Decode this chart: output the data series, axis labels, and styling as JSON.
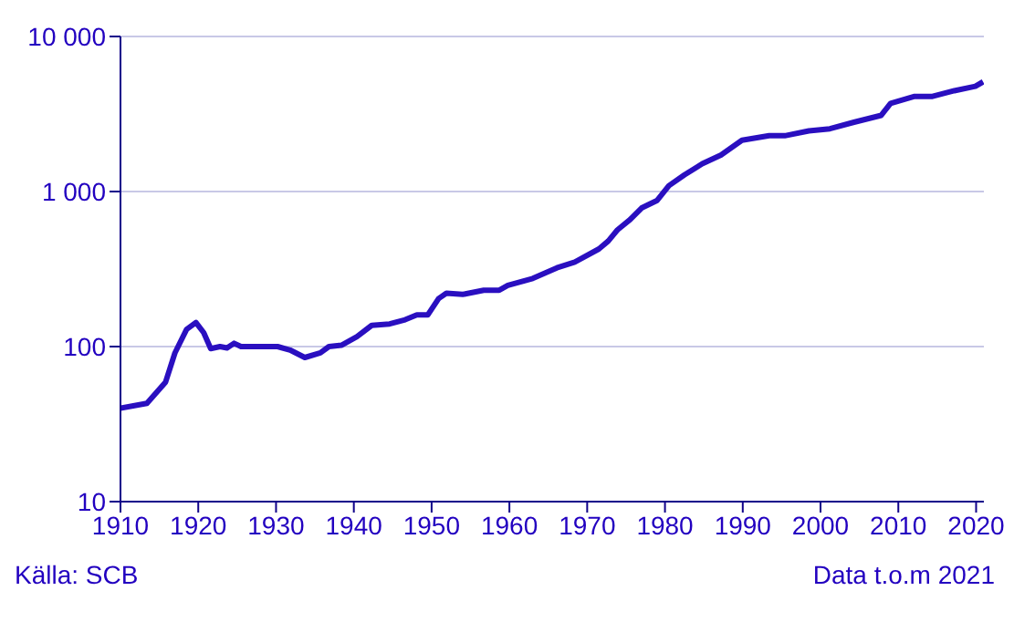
{
  "chart_data": {
    "type": "line",
    "log": "y",
    "grid": "y",
    "marker": "none",
    "line_style": "solid",
    "x": [
      1910,
      1913.4,
      1915.8,
      1917,
      1918.5,
      1919.7,
      1920.7,
      1921.6,
      1922.8,
      1923.7,
      1924.6,
      1925.5,
      1930.2,
      1931.8,
      1933.7,
      1935.7,
      1936.8,
      1938.4,
      1940.4,
      1942.3,
      1944.6,
      1946.6,
      1948.1,
      1949.5,
      1950.9,
      1951.9,
      1954,
      1956.7,
      1958.7,
      1959.8,
      1963,
      1966.1,
      1968.4,
      1971.5,
      1972.7,
      1973.9,
      1975.5,
      1977,
      1979,
      1980.5,
      1982.5,
      1984.8,
      1987.2,
      1989.9,
      1993.4,
      1995.4,
      1998.5,
      2001.2,
      2004.3,
      2007.8,
      2009,
      2012.1,
      2014.4,
      2017.2,
      2019.9,
      2020.9
    ],
    "series": [
      {
        "color": "#2a0fc0",
        "values": [
          40,
          43,
          59,
          91,
          129,
          143,
          123,
          97,
          100,
          98,
          105,
          100,
          100,
          95,
          85,
          91,
          100,
          102,
          116,
          137,
          140,
          149,
          160,
          160,
          204,
          221,
          217,
          231,
          231,
          248,
          275,
          322,
          351,
          426,
          479,
          566,
          658,
          783,
          877,
          1090,
          1280,
          1510,
          1720,
          2140,
          2290,
          2290,
          2460,
          2540,
          2800,
          3100,
          3700,
          4110,
          4110,
          4470,
          4770,
          5100
        ]
      }
    ],
    "xlim": [
      1910,
      2021
    ],
    "xticks": [
      1910,
      1920,
      1930,
      1940,
      1950,
      1960,
      1970,
      1980,
      1990,
      2000,
      2010,
      2020
    ],
    "ylim": [
      10,
      10000
    ],
    "yticks": [
      {
        "value": 10,
        "label": "10"
      },
      {
        "value": 100,
        "label": "100"
      },
      {
        "value": 1000,
        "label": "1 000"
      },
      {
        "value": 10000,
        "label": "10 000"
      }
    ],
    "annotations": [
      "Källa: SCB",
      "Data t.o.m 2021"
    ]
  }
}
